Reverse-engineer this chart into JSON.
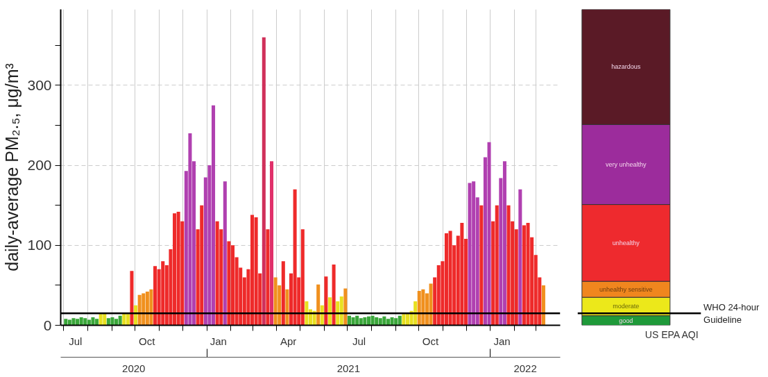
{
  "chart_data": [
    {
      "type": "bar",
      "ylabel": "daily-average PM₂.₅, μg/m³",
      "x": [
        "2020-07-01",
        "2020-07-06",
        "2020-07-11",
        "2020-07-16",
        "2020-07-21",
        "2020-07-26",
        "2020-07-31",
        "2020-08-05",
        "2020-08-10",
        "2020-08-15",
        "2020-08-20",
        "2020-08-25",
        "2020-08-30",
        "2020-09-04",
        "2020-09-09",
        "2020-09-14",
        "2020-09-19",
        "2020-09-24",
        "2020-09-29",
        "2020-10-04",
        "2020-10-09",
        "2020-10-14",
        "2020-10-19",
        "2020-10-24",
        "2020-10-29",
        "2020-11-03",
        "2020-11-08",
        "2020-11-13",
        "2020-11-18",
        "2020-11-23",
        "2020-11-28",
        "2020-12-03",
        "2020-12-08",
        "2020-12-13",
        "2020-12-18",
        "2020-12-23",
        "2020-12-28",
        "2021-01-02",
        "2021-01-07",
        "2021-01-12",
        "2021-01-17",
        "2021-01-22",
        "2021-01-27",
        "2021-02-01",
        "2021-02-06",
        "2021-02-11",
        "2021-02-16",
        "2021-02-21",
        "2021-02-26",
        "2021-03-03",
        "2021-03-08",
        "2021-03-13",
        "2021-03-18",
        "2021-03-23",
        "2021-03-28",
        "2021-04-02",
        "2021-04-07",
        "2021-04-12",
        "2021-04-17",
        "2021-04-22",
        "2021-04-27",
        "2021-05-02",
        "2021-05-07",
        "2021-05-12",
        "2021-05-17",
        "2021-05-22",
        "2021-05-27",
        "2021-06-01",
        "2021-06-06",
        "2021-06-11",
        "2021-06-16",
        "2021-06-21",
        "2021-06-26",
        "2021-07-01",
        "2021-07-06",
        "2021-07-11",
        "2021-07-16",
        "2021-07-21",
        "2021-07-26",
        "2021-07-31",
        "2021-08-05",
        "2021-08-10",
        "2021-08-15",
        "2021-08-20",
        "2021-08-25",
        "2021-08-30",
        "2021-09-04",
        "2021-09-09",
        "2021-09-14",
        "2021-09-19",
        "2021-09-24",
        "2021-09-29",
        "2021-10-04",
        "2021-10-09",
        "2021-10-14",
        "2021-10-19",
        "2021-10-24",
        "2021-10-29",
        "2021-11-03",
        "2021-11-08",
        "2021-11-13",
        "2021-11-18",
        "2021-11-23",
        "2021-11-28",
        "2021-12-03",
        "2021-12-08",
        "2021-12-13",
        "2021-12-18",
        "2021-12-23",
        "2021-12-28",
        "2022-01-02",
        "2022-01-07",
        "2022-01-12",
        "2022-01-17",
        "2022-01-22",
        "2022-01-27",
        "2022-02-01",
        "2022-02-06",
        "2022-02-11",
        "2022-02-16",
        "2022-02-21",
        "2022-02-26",
        "2022-03-03",
        "2022-03-08"
      ],
      "values": [
        8,
        7,
        9,
        8,
        10,
        9,
        7,
        10,
        8,
        14,
        16,
        9,
        10,
        8,
        12,
        15,
        14,
        68,
        25,
        38,
        40,
        42,
        45,
        74,
        70,
        80,
        75,
        95,
        140,
        142,
        130,
        193,
        240,
        205,
        120,
        150,
        185,
        200,
        275,
        130,
        120,
        180,
        105,
        100,
        85,
        72,
        60,
        70,
        138,
        135,
        65,
        360,
        120,
        205,
        60,
        50,
        80,
        45,
        65,
        170,
        60,
        120,
        30,
        20,
        18,
        51,
        25,
        61,
        35,
        76,
        30,
        36,
        46,
        12,
        10,
        12,
        9,
        10,
        11,
        12,
        10,
        9,
        11,
        8,
        10,
        9,
        12,
        14,
        15,
        18,
        30,
        43,
        45,
        40,
        52,
        60,
        75,
        80,
        115,
        118,
        100,
        112,
        128,
        108,
        178,
        180,
        160,
        150,
        210,
        229,
        130,
        150,
        184,
        205,
        150,
        130,
        120,
        170,
        125,
        128,
        110,
        88,
        60,
        50
      ],
      "colors": [
        "#3aa63a",
        "#3aa63a",
        "#3aa63a",
        "#3aa63a",
        "#3aa63a",
        "#3aa63a",
        "#3aa63a",
        "#3aa63a",
        "#3aa63a",
        "#e8e020",
        "#e8e020",
        "#3aa63a",
        "#3aa63a",
        "#3aa63a",
        "#3aa63a",
        "#e8e020",
        "#e8e020",
        "#ee2a2a",
        "#e8e020",
        "#f0901e",
        "#f0901e",
        "#f0901e",
        "#f0901e",
        "#ee2a2a",
        "#ee2a2a",
        "#ee2a2a",
        "#ee2a2a",
        "#ee2a2a",
        "#ee2a2a",
        "#ee2a2a",
        "#ee2a2a",
        "#b040b0",
        "#b040b0",
        "#b040b0",
        "#ee2a2a",
        "#ee2a2a",
        "#b040b0",
        "#b040b0",
        "#b040b0",
        "#ee2a2a",
        "#ee2a2a",
        "#b040b0",
        "#ee2a2a",
        "#ee2a2a",
        "#ee2a2a",
        "#ee2a2a",
        "#ee2a2a",
        "#ee2a2a",
        "#ee2a2a",
        "#ee2a2a",
        "#ee2a2a",
        "#d0305a",
        "#ee2a2a",
        "#e0306a",
        "#f0901e",
        "#f0901e",
        "#ee2a2a",
        "#f0901e",
        "#ee2a2a",
        "#ee2a2a",
        "#ee2a2a",
        "#ee2a2a",
        "#e8e020",
        "#e8e020",
        "#e8e020",
        "#f0901e",
        "#e8e020",
        "#ee2a2a",
        "#e8e020",
        "#ee2a2a",
        "#e8e020",
        "#e8e020",
        "#f0901e",
        "#3aa63a",
        "#3aa63a",
        "#3aa63a",
        "#3aa63a",
        "#3aa63a",
        "#3aa63a",
        "#3aa63a",
        "#3aa63a",
        "#3aa63a",
        "#3aa63a",
        "#3aa63a",
        "#3aa63a",
        "#3aa63a",
        "#3aa63a",
        "#e8e020",
        "#e8e020",
        "#e8e020",
        "#e8e020",
        "#f0901e",
        "#f0901e",
        "#f0901e",
        "#f0901e",
        "#ee2a2a",
        "#ee2a2a",
        "#ee2a2a",
        "#ee2a2a",
        "#ee2a2a",
        "#ee2a2a",
        "#ee2a2a",
        "#ee2a2a",
        "#ee2a2a",
        "#b040b0",
        "#b040b0",
        "#b040b0",
        "#ee2a2a",
        "#b040b0",
        "#b040b0",
        "#ee2a2a",
        "#ee2a2a",
        "#b040b0",
        "#b040b0",
        "#ee2a2a",
        "#ee2a2a",
        "#ee2a2a",
        "#b040b0",
        "#ee2a2a",
        "#ee2a2a",
        "#ee2a2a",
        "#ee2a2a",
        "#ee2a2a",
        "#f0901e"
      ],
      "xlim": [
        "2020-06-27",
        "2022-04-01"
      ],
      "xticks": [
        {
          "value": "2020-07-01",
          "label": null
        },
        {
          "value": "2020-08-01",
          "label": null
        },
        {
          "value": "2020-09-01",
          "label": null
        },
        {
          "value": "2020-10-01",
          "label": null
        },
        {
          "value": "2020-11-01",
          "label": null
        },
        {
          "value": "2020-12-01",
          "label": null
        },
        {
          "value": "2021-01-01",
          "label": null
        },
        {
          "value": "2021-02-01",
          "label": null
        },
        {
          "value": "2021-03-01",
          "label": null
        },
        {
          "value": "2021-04-01",
          "label": null
        },
        {
          "value": "2021-05-01",
          "label": null
        },
        {
          "value": "2021-06-01",
          "label": null
        },
        {
          "value": "2021-07-01",
          "label": null
        },
        {
          "value": "2021-08-01",
          "label": null
        },
        {
          "value": "2021-09-01",
          "label": null
        },
        {
          "value": "2021-10-01",
          "label": null
        },
        {
          "value": "2021-11-01",
          "label": null
        },
        {
          "value": "2021-12-01",
          "label": null
        },
        {
          "value": "2022-01-01",
          "label": null
        },
        {
          "value": "2022-02-01",
          "label": null
        },
        {
          "value": "2022-03-01",
          "label": null
        },
        {
          "value": "2020-07-16",
          "label": "Jul"
        },
        {
          "value": "2020-10-16",
          "label": "Oct"
        },
        {
          "value": "2021-01-16",
          "label": "Jan"
        },
        {
          "value": "2021-04-16",
          "label": "Apr"
        },
        {
          "value": "2021-07-16",
          "label": "Jul"
        },
        {
          "value": "2021-10-16",
          "label": "Oct"
        },
        {
          "value": "2022-01-16",
          "label": "Jan"
        }
      ],
      "ylim": [
        0,
        395
      ],
      "yticks": [
        0,
        {
          "value": 50,
          "label": null
        },
        100,
        {
          "value": 150,
          "label": null
        },
        200,
        {
          "value": 250,
          "label": null
        },
        300,
        {
          "value": 350,
          "label": null
        }
      ],
      "grid": true,
      "ref_lines": [
        {
          "axis": "y",
          "value": 15,
          "label": null,
          "color": "#000000"
        }
      ],
      "annotations": [
        "2020",
        "2021",
        "2022"
      ]
    },
    {
      "type": "bar",
      "stacked": true,
      "categories": [
        null
      ],
      "xlabel": "US EPA AQI",
      "series": [
        {
          "name": "good",
          "color": "#1f9a3a",
          "values": [
            12
          ]
        },
        {
          "name": "moderate",
          "color": "#ece81a",
          "values": [
            23
          ]
        },
        {
          "name": "unhealthy sensitive",
          "color": "#f0861e",
          "values": [
            20
          ]
        },
        {
          "name": "unhealthy",
          "color": "#ee2a2e",
          "values": [
            96
          ]
        },
        {
          "name": "very unhealthy",
          "color": "#9c2c9c",
          "values": [
            100
          ]
        },
        {
          "name": "hazardous",
          "color": "#5a1a26",
          "values": [
            144
          ]
        }
      ],
      "ylim": [
        0,
        395
      ],
      "tick_labels": false,
      "ref_lines": [
        {
          "axis": "y",
          "value": 15,
          "label": "WHO 24-hour Guideline",
          "color": "#000000"
        }
      ]
    }
  ]
}
